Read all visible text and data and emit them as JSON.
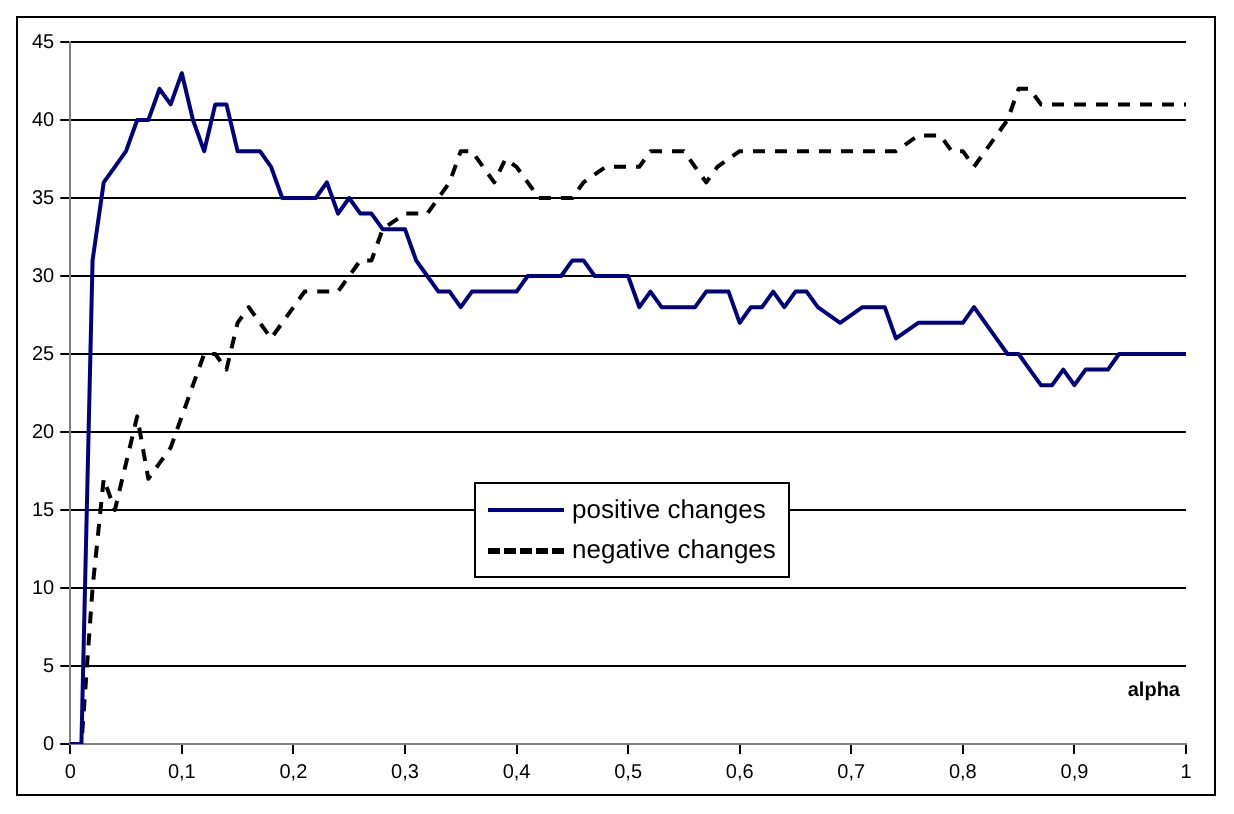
{
  "chart_data": {
    "type": "line",
    "xlabel": "alpha",
    "xlim": [
      0,
      1
    ],
    "xticks": [
      0,
      {
        "value": 0.1,
        "label": "0,1"
      },
      {
        "value": 0.2,
        "label": "0,2"
      },
      {
        "value": 0.3,
        "label": "0,3"
      },
      {
        "value": 0.4,
        "label": "0,4"
      },
      {
        "value": 0.5,
        "label": "0,5"
      },
      {
        "value": 0.6,
        "label": "0,6"
      },
      {
        "value": 0.7,
        "label": "0,7"
      },
      {
        "value": 0.8,
        "label": "0,8"
      },
      {
        "value": 0.9,
        "label": "0,9"
      },
      1
    ],
    "ylim": [
      0,
      45
    ],
    "yticks": [
      0,
      5,
      10,
      15,
      20,
      25,
      30,
      35,
      40,
      45
    ],
    "grid": "y",
    "legend": "center",
    "marker": "none",
    "series": [
      {
        "name": "positive changes",
        "color": "#000080",
        "line_style": "solid",
        "x": [
          0,
          0.01,
          0.02,
          0.03,
          0.04,
          0.05,
          0.06,
          0.07,
          0.08,
          0.09,
          0.1,
          0.11,
          0.12,
          0.13,
          0.14,
          0.15,
          0.16,
          0.17,
          0.18,
          0.19,
          0.2,
          0.22,
          0.23,
          0.24,
          0.25,
          0.26,
          0.27,
          0.28,
          0.3,
          0.31,
          0.32,
          0.33,
          0.34,
          0.35,
          0.36,
          0.4,
          0.41,
          0.44,
          0.45,
          0.46,
          0.47,
          0.5,
          0.51,
          0.52,
          0.53,
          0.56,
          0.57,
          0.59,
          0.6,
          0.61,
          0.62,
          0.63,
          0.64,
          0.65,
          0.66,
          0.67,
          0.69,
          0.71,
          0.73,
          0.74,
          0.76,
          0.8,
          0.81,
          0.83,
          0.84,
          0.85,
          0.86,
          0.87,
          0.88,
          0.89,
          0.9,
          0.91,
          0.93,
          0.94,
          1
        ],
        "values": [
          0,
          0,
          31,
          36,
          37,
          38,
          40,
          40,
          42,
          41,
          43,
          40,
          38,
          41,
          41,
          38,
          38,
          38,
          37,
          35,
          35,
          35,
          36,
          34,
          35,
          34,
          34,
          33,
          33,
          31,
          30,
          29,
          29,
          28,
          29,
          29,
          30,
          30,
          31,
          31,
          30,
          30,
          28,
          29,
          28,
          28,
          29,
          29,
          27,
          28,
          28,
          29,
          28,
          29,
          29,
          28,
          27,
          28,
          28,
          26,
          27,
          27,
          28,
          26,
          25,
          25,
          24,
          23,
          23,
          24,
          23,
          24,
          24,
          25,
          25
        ]
      },
      {
        "name": "negative changes",
        "color": "#000000",
        "line_style": "dashed",
        "x": [
          0,
          0.01,
          0.02,
          0.03,
          0.04,
          0.05,
          0.06,
          0.07,
          0.08,
          0.09,
          0.1,
          0.11,
          0.12,
          0.13,
          0.14,
          0.15,
          0.16,
          0.17,
          0.18,
          0.19,
          0.2,
          0.21,
          0.23,
          0.24,
          0.25,
          0.26,
          0.27,
          0.28,
          0.3,
          0.31,
          0.32,
          0.33,
          0.34,
          0.35,
          0.36,
          0.37,
          0.38,
          0.39,
          0.4,
          0.41,
          0.42,
          0.43,
          0.44,
          0.45,
          0.46,
          0.48,
          0.49,
          0.51,
          0.52,
          0.53,
          0.55,
          0.56,
          0.57,
          0.58,
          0.6,
          0.73,
          0.74,
          0.76,
          0.77,
          0.78,
          0.79,
          0.8,
          0.81,
          0.82,
          0.84,
          0.85,
          0.86,
          0.87,
          1
        ],
        "values": [
          0,
          0,
          10,
          17,
          15,
          18,
          21,
          17,
          18,
          19,
          21,
          23,
          25,
          25,
          24,
          27,
          28,
          27,
          26,
          27,
          28,
          29,
          29,
          29,
          30,
          31,
          31,
          33,
          34,
          34,
          34,
          35,
          36,
          38,
          38,
          37,
          36,
          37.5,
          37,
          36,
          35,
          35,
          35,
          35,
          36,
          37,
          37,
          37,
          38,
          38,
          38,
          37,
          36,
          37,
          38,
          38,
          38,
          39,
          39,
          39,
          38,
          38,
          37,
          38,
          40,
          42,
          42,
          41,
          41
        ]
      }
    ]
  }
}
